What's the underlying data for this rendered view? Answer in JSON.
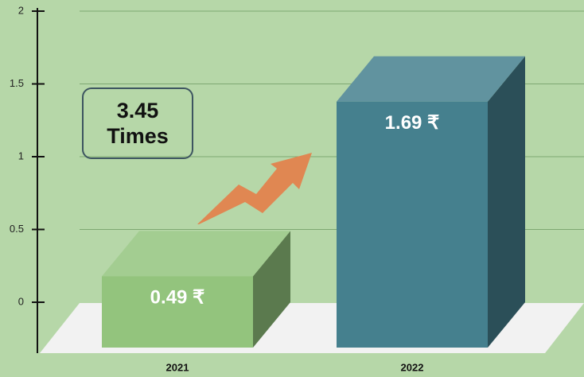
{
  "chart_data": {
    "type": "bar3d",
    "categories": [
      "2021",
      "2022"
    ],
    "values": [
      0.49,
      1.69
    ],
    "value_labels": [
      "0.49 ₹",
      "1.69 ₹"
    ],
    "colors": [
      "#93c47d",
      "#45808e"
    ],
    "ylim": [
      0,
      2
    ],
    "yticks": [
      0,
      {
        "value": 0.5,
        "label": "0.5"
      },
      1,
      1.5,
      2
    ],
    "grid": true,
    "annotation": "3.45 Times"
  }
}
